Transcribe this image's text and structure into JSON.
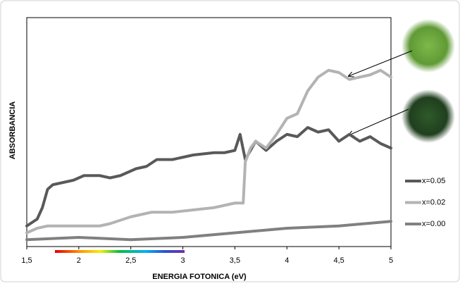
{
  "chart_data": {
    "type": "line",
    "xlabel": "ENERGIA FOTONICA (eV)",
    "ylabel": "ABSORBANCIA",
    "xlim": [
      1.5,
      5
    ],
    "xticks": [
      {
        "value": 1.5,
        "label": "1,5"
      },
      2,
      {
        "value": 2.5,
        "label": "2,5"
      },
      3,
      {
        "value": 3.5,
        "label": "3,5"
      },
      4,
      {
        "value": 4.5,
        "label": "4,5"
      },
      5
    ],
    "ylim": [
      0,
      1
    ],
    "legend": "right",
    "series": [
      {
        "name": "x=0.05",
        "color": "#595959",
        "x": [
          1.5,
          1.6,
          1.65,
          1.7,
          1.75,
          1.85,
          1.95,
          2.05,
          2.2,
          2.3,
          2.4,
          2.5,
          2.55,
          2.65,
          2.75,
          2.9,
          3.0,
          3.1,
          3.3,
          3.4,
          3.5,
          3.55,
          3.6,
          3.7,
          3.8,
          3.9,
          4.0,
          4.1,
          4.2,
          4.3,
          4.4,
          4.5,
          4.6,
          4.7,
          4.8,
          4.9,
          5.0
        ],
        "values": [
          0.09,
          0.12,
          0.17,
          0.25,
          0.27,
          0.28,
          0.29,
          0.31,
          0.31,
          0.3,
          0.31,
          0.33,
          0.34,
          0.35,
          0.38,
          0.38,
          0.39,
          0.4,
          0.41,
          0.41,
          0.42,
          0.49,
          0.38,
          0.46,
          0.42,
          0.46,
          0.49,
          0.48,
          0.52,
          0.5,
          0.51,
          0.46,
          0.49,
          0.46,
          0.48,
          0.45,
          0.43
        ]
      },
      {
        "name": "x=0.02",
        "color": "#b3b3b3",
        "x": [
          1.5,
          1.6,
          1.7,
          1.9,
          2.2,
          2.3,
          2.5,
          2.7,
          2.9,
          3.1,
          3.3,
          3.5,
          3.58,
          3.6,
          3.65,
          3.7,
          3.8,
          3.9,
          4.0,
          4.1,
          4.2,
          4.3,
          4.4,
          4.5,
          4.6,
          4.7,
          4.8,
          4.9,
          5.0
        ],
        "values": [
          0.06,
          0.08,
          0.09,
          0.09,
          0.09,
          0.1,
          0.13,
          0.15,
          0.15,
          0.16,
          0.17,
          0.19,
          0.19,
          0.37,
          0.43,
          0.46,
          0.43,
          0.49,
          0.56,
          0.58,
          0.68,
          0.74,
          0.77,
          0.76,
          0.73,
          0.74,
          0.75,
          0.77,
          0.74
        ]
      },
      {
        "name": "x=0.00",
        "color": "#808080",
        "x": [
          1.5,
          2.0,
          2.5,
          3.0,
          3.5,
          4.0,
          4.5,
          5.0
        ],
        "values": [
          0.03,
          0.04,
          0.03,
          0.04,
          0.06,
          0.08,
          0.09,
          0.11
        ]
      }
    ]
  }
}
